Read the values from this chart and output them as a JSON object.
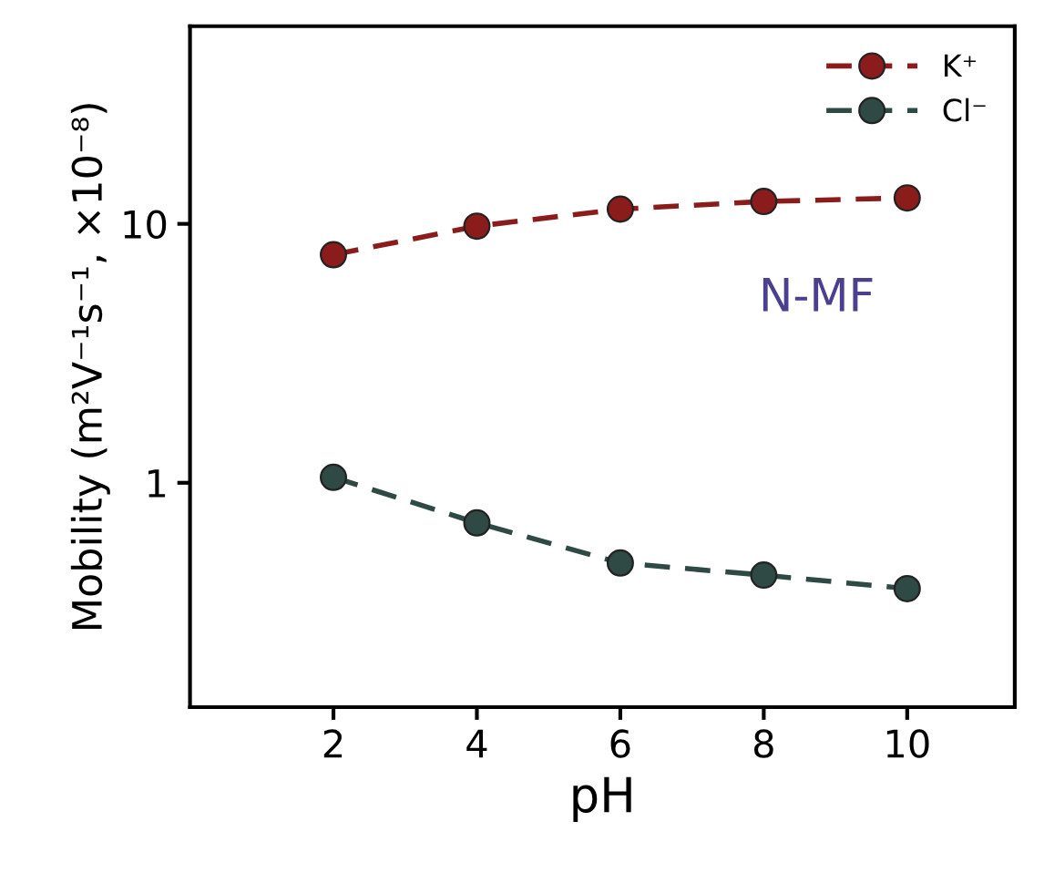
{
  "chart_data": {
    "type": "line",
    "xlabel": "pH",
    "ylabel": "Mobility (m²V⁻¹s⁻¹, ×10⁻⁸)",
    "x": [
      2,
      4,
      6,
      8,
      10
    ],
    "series": [
      {
        "name": "K⁺",
        "color": "#8b1c1c",
        "values": [
          7.6,
          9.8,
          11.4,
          12.2,
          12.6
        ]
      },
      {
        "name": "Cl⁻",
        "color": "#2f4a45",
        "values": [
          1.05,
          0.7,
          0.49,
          0.44,
          0.39
        ]
      }
    ],
    "annotations": [
      "N-MF"
    ],
    "log": "y",
    "xlim": [
      0,
      11.5
    ],
    "ylim": [
      0.136,
      58
    ],
    "xticks": [
      2,
      4,
      6,
      8,
      10
    ],
    "yticks": [
      1,
      10
    ],
    "grid": false,
    "legend": "top right",
    "marker": "circle",
    "line_style": "dashed"
  }
}
